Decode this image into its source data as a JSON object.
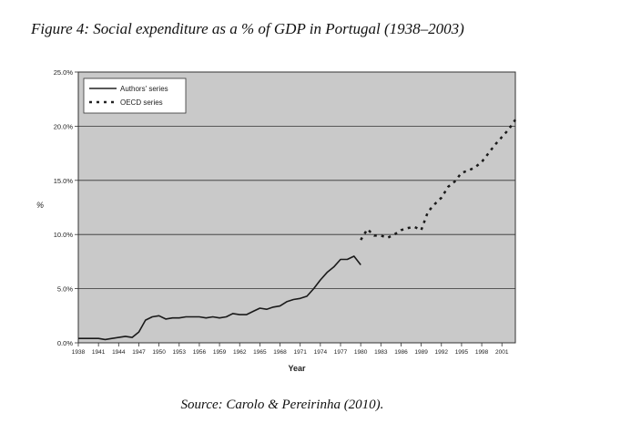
{
  "figure_title": "Figure 4: Social expenditure as a % of GDP in Portugal (1938–2003)",
  "source": "Source: Carolo & Pereirinha (2010).",
  "chart_data": {
    "type": "line",
    "title": "",
    "xlabel": "Year",
    "ylabel": "%",
    "ylim": [
      0,
      25
    ],
    "xlim": [
      1938,
      2003
    ],
    "grid": "horizontal",
    "legend_position": "top-left",
    "y_ticks": [
      {
        "value": 0,
        "label": "0.0%"
      },
      {
        "value": 5,
        "label": "5.0%"
      },
      {
        "value": 10,
        "label": "10.0%"
      },
      {
        "value": 15,
        "label": "15.0%"
      },
      {
        "value": 20,
        "label": "20.0%"
      },
      {
        "value": 25,
        "label": "25.0%"
      }
    ],
    "x_ticks": [
      {
        "value": 1938,
        "label": "1938"
      },
      {
        "value": 1941,
        "label": "1941"
      },
      {
        "value": 1944,
        "label": "1944"
      },
      {
        "value": 1947,
        "label": "1947"
      },
      {
        "value": 1950,
        "label": "1950"
      },
      {
        "value": 1953,
        "label": "1953"
      },
      {
        "value": 1956,
        "label": "1956"
      },
      {
        "value": 1959,
        "label": "1959"
      },
      {
        "value": 1962,
        "label": "1962"
      },
      {
        "value": 1965,
        "label": "1965"
      },
      {
        "value": 1968,
        "label": "1968"
      },
      {
        "value": 1971,
        "label": "1971"
      },
      {
        "value": 1974,
        "label": "1974"
      },
      {
        "value": 1977,
        "label": "1977"
      },
      {
        "value": 1980,
        "label": "1980"
      },
      {
        "value": 1983,
        "label": "1983"
      },
      {
        "value": 1986,
        "label": "1986"
      },
      {
        "value": 1989,
        "label": "1989"
      },
      {
        "value": 1992,
        "label": "1992"
      },
      {
        "value": 1995,
        "label": "1995"
      },
      {
        "value": 1998,
        "label": "1998"
      },
      {
        "value": 2001,
        "label": "2001"
      }
    ],
    "series": [
      {
        "name": "Authors' series",
        "style": "solid",
        "x": [
          1938,
          1939,
          1940,
          1941,
          1942,
          1943,
          1944,
          1945,
          1946,
          1947,
          1948,
          1949,
          1950,
          1951,
          1952,
          1953,
          1954,
          1955,
          1956,
          1957,
          1958,
          1959,
          1960,
          1961,
          1962,
          1963,
          1964,
          1965,
          1966,
          1967,
          1968,
          1969,
          1970,
          1971,
          1972,
          1973,
          1974,
          1975,
          1976,
          1977,
          1978,
          1979,
          1980
        ],
        "values": [
          0.4,
          0.4,
          0.4,
          0.4,
          0.3,
          0.4,
          0.5,
          0.6,
          0.5,
          1.0,
          2.1,
          2.4,
          2.5,
          2.2,
          2.3,
          2.3,
          2.4,
          2.4,
          2.4,
          2.3,
          2.4,
          2.3,
          2.4,
          2.7,
          2.6,
          2.6,
          2.9,
          3.2,
          3.1,
          3.3,
          3.4,
          3.8,
          4.0,
          4.1,
          4.3,
          5.0,
          5.8,
          6.5,
          7.0,
          7.7,
          7.7,
          8.0,
          7.2
        ]
      },
      {
        "name": "OECD series",
        "style": "dotted",
        "x": [
          1980,
          1981,
          1982,
          1983,
          1984,
          1985,
          1986,
          1987,
          1988,
          1989,
          1990,
          1991,
          1992,
          1993,
          1994,
          1995,
          1996,
          1997,
          1998,
          1999,
          2000,
          2001,
          2002,
          2003
        ],
        "values": [
          9.5,
          10.5,
          9.9,
          9.9,
          9.7,
          10.0,
          10.4,
          10.6,
          10.7,
          10.4,
          12.1,
          12.8,
          13.4,
          14.4,
          14.9,
          15.7,
          15.9,
          16.2,
          16.7,
          17.5,
          18.3,
          19.0,
          19.7,
          20.6
        ]
      }
    ]
  }
}
